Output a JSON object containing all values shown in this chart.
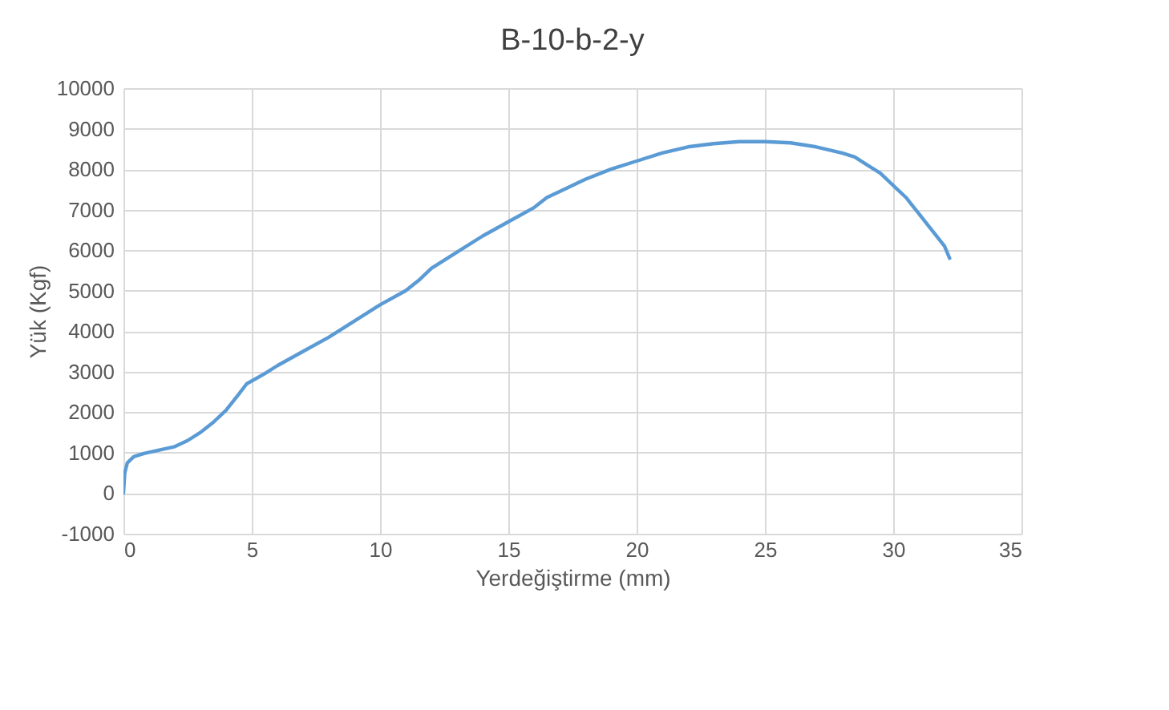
{
  "chart_data": {
    "type": "line",
    "title": "B-10-b-2-y",
    "xlabel": "Yerdeğiştirme (mm)",
    "ylabel": "Yük (Kgf)",
    "xlim": [
      0,
      35
    ],
    "xticks": [
      0,
      5,
      10,
      15,
      20,
      25,
      30,
      35
    ],
    "ylim": [
      -1000,
      10000
    ],
    "yticks": [
      -1000,
      0,
      1000,
      2000,
      3000,
      4000,
      5000,
      6000,
      7000,
      8000,
      9000,
      10000
    ],
    "grid": true,
    "line_style": "solid",
    "series": [
      {
        "color": "#5b9bd5",
        "x": [
          0,
          0.05,
          0.15,
          0.4,
          0.8,
          1.5,
          2,
          2.5,
          3,
          3.5,
          4,
          4.5,
          4.8,
          5.5,
          6,
          7,
          8,
          9,
          10,
          11,
          11.5,
          12,
          13,
          14,
          15,
          16,
          16.5,
          17,
          18,
          19,
          20,
          21,
          22,
          23,
          24,
          25,
          26,
          27,
          28,
          28.5,
          29,
          29.5,
          30,
          30.5,
          31,
          31.5,
          32,
          32.2
        ],
        "values": [
          0,
          500,
          750,
          900,
          980,
          1080,
          1150,
          1300,
          1500,
          1750,
          2050,
          2450,
          2700,
          2950,
          3150,
          3500,
          3850,
          4250,
          4650,
          5000,
          5250,
          5550,
          5950,
          6350,
          6700,
          7050,
          7300,
          7450,
          7750,
          8000,
          8200,
          8400,
          8550,
          8630,
          8680,
          8680,
          8650,
          8550,
          8400,
          8300,
          8100,
          7900,
          7600,
          7300,
          6900,
          6500,
          6100,
          5800
        ]
      }
    ]
  }
}
